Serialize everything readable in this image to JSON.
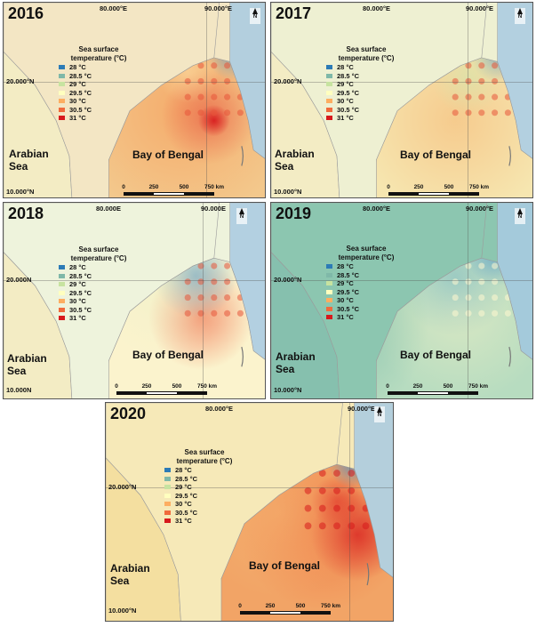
{
  "legend": {
    "title": "Sea surface temperature (°C)",
    "items": [
      {
        "label": "28 °C",
        "color": "#2c7bb6"
      },
      {
        "label": "28.5 °C",
        "color": "#7fb8a8"
      },
      {
        "label": "29 °C",
        "color": "#c7e3a0"
      },
      {
        "label": "29.5 °C",
        "color": "#ffffbf"
      },
      {
        "label": "30 °C",
        "color": "#fdae61"
      },
      {
        "label": "30.5 °C",
        "color": "#f06a3c"
      },
      {
        "label": "31 °C",
        "color": "#d7191c"
      }
    ]
  },
  "coords": {
    "lon1": "80.000°E",
    "lon2": "90.000°E",
    "lat1": "20.000°N",
    "lat2": "10.000°N"
  },
  "coords_2018": {
    "lon1": "80.000E",
    "lon2": "90.000E",
    "lat1": "20.000N",
    "lat2": "10.000N"
  },
  "seas": {
    "arabian": "Arabian Sea",
    "bengal": "Bay of Bengal"
  },
  "north_label": "N",
  "scale": {
    "ticks": [
      "0",
      "250",
      "500",
      "750 km"
    ]
  },
  "panels": [
    {
      "year": "2016",
      "coord_style": "deg",
      "sea_tone": "warm",
      "land": "#f3e6c4"
    },
    {
      "year": "2017",
      "coord_style": "deg",
      "sea_tone": "mild",
      "land": "#eef0d2"
    },
    {
      "year": "2018",
      "coord_style": "plain",
      "sea_tone": "mixed",
      "land": "#eef3dc"
    },
    {
      "year": "2019",
      "coord_style": "deg",
      "sea_tone": "cool",
      "land": "#8cc6b0"
    },
    {
      "year": "2020",
      "coord_style": "deg",
      "sea_tone": "hot",
      "land": "#f6e9b8"
    }
  ]
}
